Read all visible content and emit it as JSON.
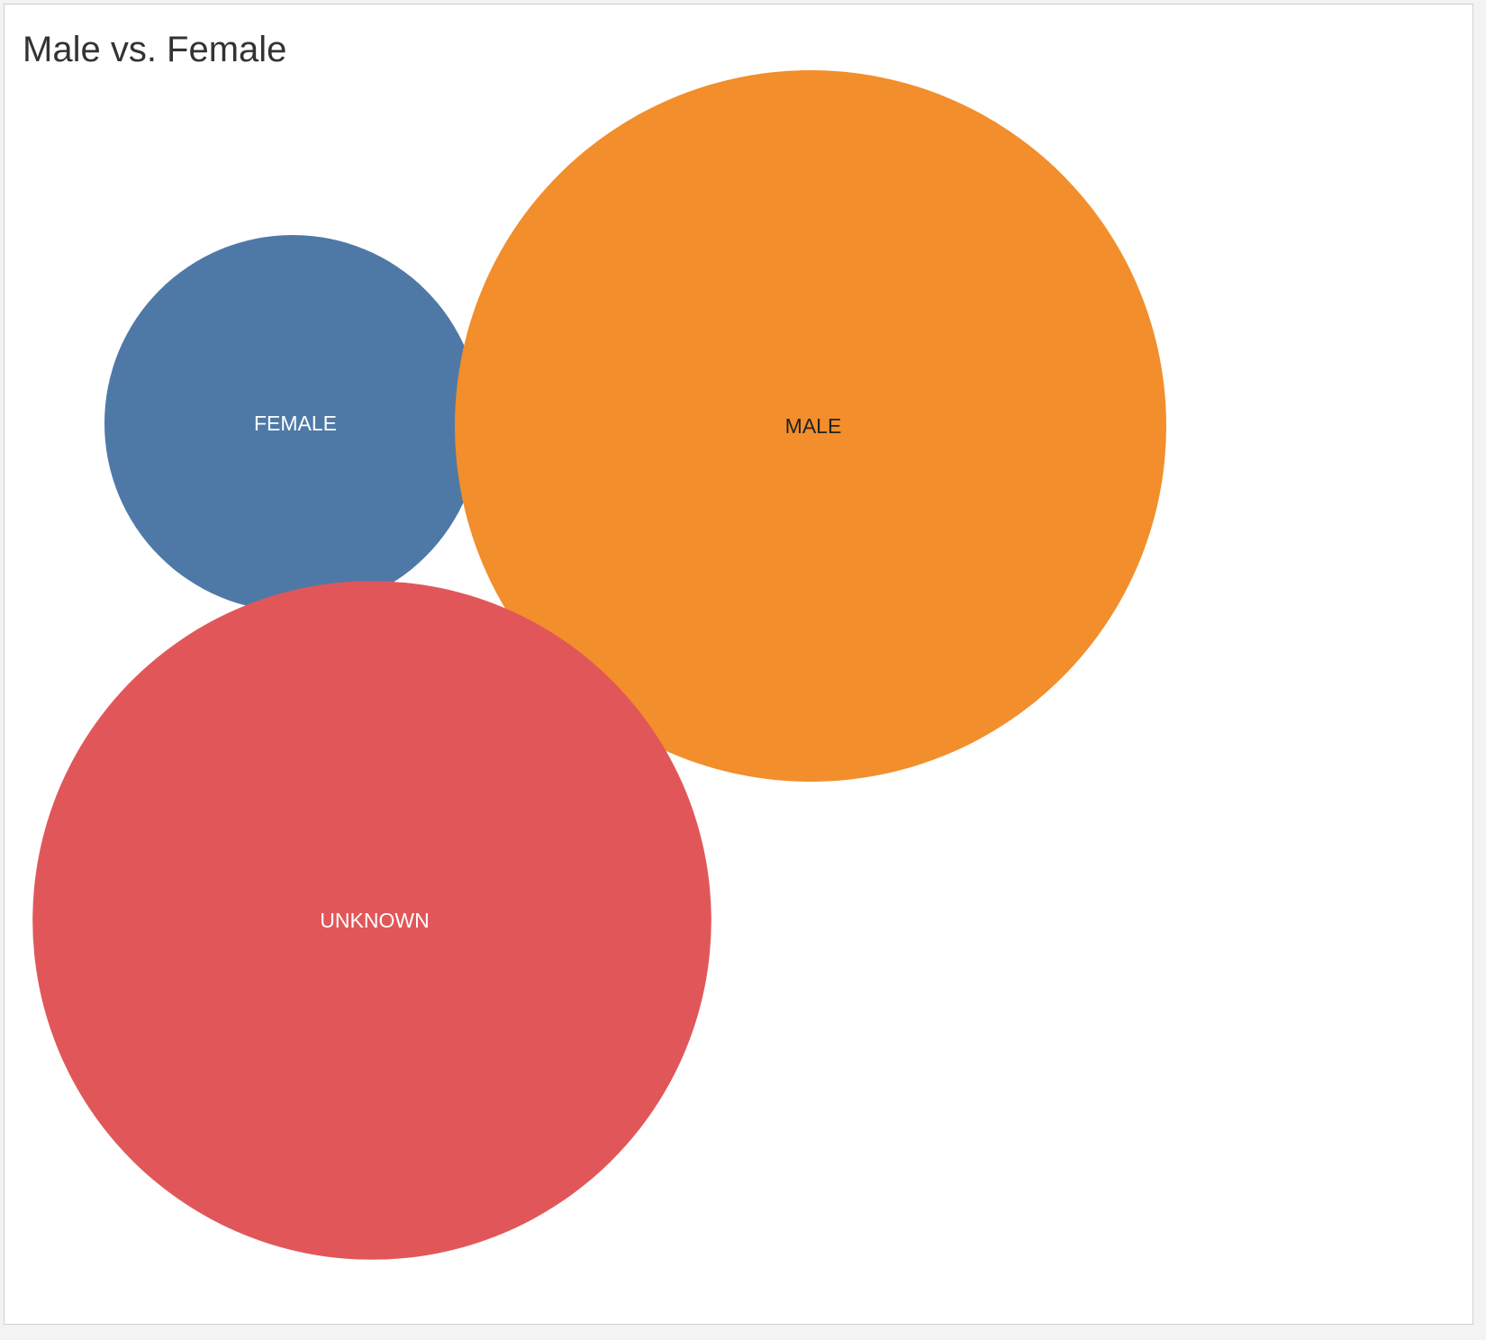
{
  "chart_data": {
    "type": "bubble",
    "title": "Male vs. Female",
    "series": [
      {
        "label": "FEMALE",
        "color": "#4e79a7",
        "label_color": "#ffffff",
        "relative_size": 0.28
      },
      {
        "label": "MALE",
        "color": "#f28e2b",
        "label_color": "#222222",
        "relative_size": 1.0
      },
      {
        "label": "UNKNOWN",
        "color": "#e15759",
        "label_color": "#ffffff",
        "relative_size": 0.91
      }
    ],
    "grid": false,
    "legend": "none"
  }
}
